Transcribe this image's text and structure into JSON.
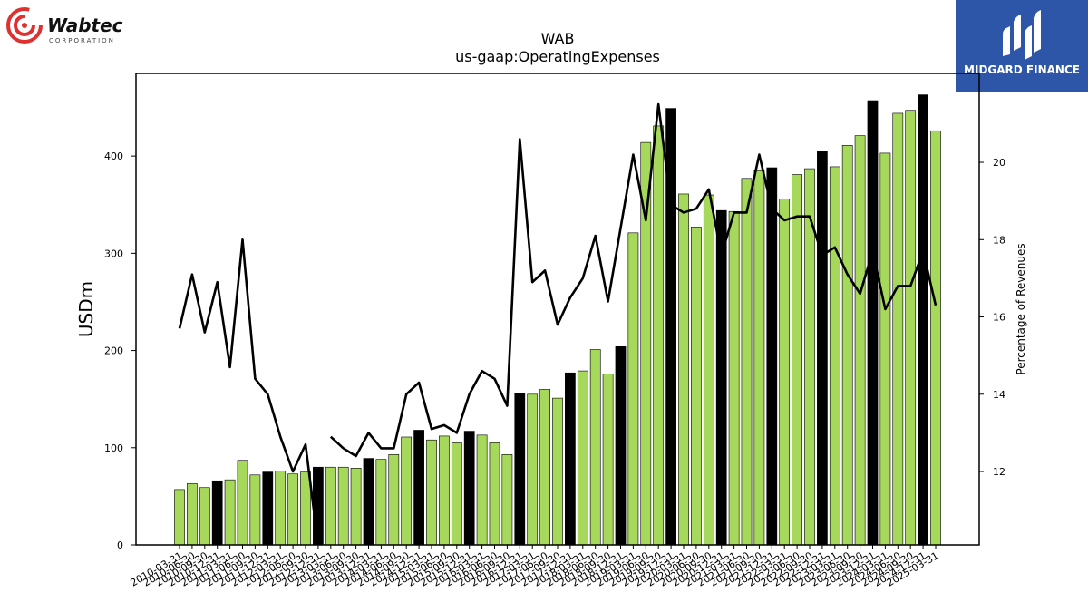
{
  "header": {
    "company_logo_text": "Wabtec",
    "company_logo_subtext": "CORPORATION",
    "brand_logo_text": "MIDGARD FINANCE"
  },
  "colors": {
    "bar_regular": "#a6d85b",
    "bar_highlight": "#000000",
    "line": "#000000",
    "brand_bg": "#2d56a8",
    "wabtec_red": "#e03131"
  },
  "chart_data": {
    "type": "bar",
    "title": "WAB",
    "subtitle": "us-gaap:OperatingExpenses",
    "ylabel": "USDm",
    "y2label": "Percentage of Revenues",
    "ylim": [
      0,
      485
    ],
    "y2lim": [
      10.1,
      22.3
    ],
    "yticks": [
      0,
      100,
      200,
      300,
      400
    ],
    "y2ticks": [
      12,
      14,
      16,
      18,
      20
    ],
    "grid": false,
    "x": [
      "2010-03-31",
      "2010-06-30",
      "2010-09-30",
      "2010-12-31",
      "2011-03-31",
      "2011-06-30",
      "2011-09-30",
      "2011-12-31",
      "2012-03-31",
      "2012-06-30",
      "2012-09-30",
      "2012-12-31",
      "2013-03-31",
      "2013-06-30",
      "2013-09-30",
      "2013-12-31",
      "2014-03-31",
      "2014-06-30",
      "2014-09-30",
      "2014-12-31",
      "2015-03-31",
      "2015-06-30",
      "2015-09-30",
      "2015-12-31",
      "2016-03-31",
      "2016-06-30",
      "2016-09-30",
      "2016-12-31",
      "2017-03-31",
      "2017-06-30",
      "2017-09-30",
      "2017-12-31",
      "2018-03-31",
      "2018-06-30",
      "2018-09-30",
      "2018-12-31",
      "2019-03-31",
      "2019-06-30",
      "2019-09-30",
      "2019-12-31",
      "2020-03-31",
      "2020-06-30",
      "2020-09-30",
      "2020-12-31",
      "2021-03-31",
      "2021-06-30",
      "2021-09-30",
      "2021-12-31",
      "2022-03-31",
      "2022-06-30",
      "2022-09-30",
      "2022-12-31",
      "2023-03-31",
      "2023-06-30",
      "2023-09-30",
      "2023-12-31",
      "2024-03-31",
      "2024-06-30",
      "2024-09-30",
      "2024-12-31",
      "2025-03-31"
    ],
    "xtick_labels": [
      "2010-03-31",
      "2010-06-30",
      "2010-09-30",
      "2010-12-31",
      "2011-03-31",
      "2011-06-30",
      "2011-09-30",
      "2011-12-31",
      "2012-03-31",
      "2012-06-30",
      "2012-09-30",
      "2012-12-31",
      "2013-03-31",
      "2013-06-30",
      "2013-09-30",
      "2013-12-31",
      "2014-03-31",
      "2014-06-30",
      "2014-09-30",
      "2014-12-31",
      "2015-03-31",
      "2015-06-30",
      "2015-09-30",
      "2015-12-31",
      "2016-03-31",
      "2016-06-30",
      "2016-09-30",
      "2016-12-31",
      "2017-03-31",
      "2017-06-30",
      "2017-09-30",
      "2017-12-31",
      "2018-03-31",
      "2018-06-30",
      "2018-09-30",
      "2018-12-31",
      "2019-03-31",
      "2019-06-30",
      "2019-09-30",
      "2019-12-31",
      "2020-03-31",
      "2020-06-30",
      "2020-09-30",
      "2020-12-31",
      "2021-03-31",
      "2021-06-30",
      "2021-09-30",
      "2021-12-31",
      "2022-03-31",
      "2022-06-30",
      "2022-09-30",
      "2022-12-31",
      "2023-03-31",
      "2023-06-30",
      "2023-09-30",
      "2023-12-31",
      "2024-03-31",
      "2024-06-30",
      "2024-09-30",
      "2024-12-31",
      "2025-03-31"
    ],
    "series": [
      {
        "kind": "bar",
        "axis": "left",
        "values": [
          57,
          63,
          59,
          66,
          67,
          87,
          72,
          75,
          76,
          73,
          75,
          80,
          80,
          80,
          79,
          89,
          88,
          93,
          111,
          118,
          108,
          112,
          105,
          117,
          113,
          105,
          93,
          156,
          155,
          160,
          151,
          177,
          179,
          201,
          176,
          204,
          321,
          414,
          431,
          449,
          361,
          327,
          360,
          344,
          343,
          377,
          385,
          388,
          356,
          381,
          387,
          405,
          389,
          411,
          421,
          457,
          403,
          444,
          447,
          463,
          426
        ],
        "highlight": [
          false,
          false,
          false,
          true,
          false,
          false,
          false,
          true,
          false,
          false,
          false,
          true,
          false,
          false,
          false,
          true,
          false,
          false,
          false,
          true,
          false,
          false,
          false,
          true,
          false,
          false,
          false,
          true,
          false,
          false,
          false,
          true,
          false,
          false,
          false,
          true,
          false,
          false,
          false,
          true,
          false,
          false,
          false,
          true,
          false,
          false,
          false,
          true,
          false,
          false,
          false,
          true,
          false,
          false,
          false,
          true,
          false,
          false,
          false,
          true,
          false
        ]
      },
      {
        "kind": "line",
        "axis": "right",
        "values": [
          15.7,
          17.1,
          15.6,
          16.9,
          14.7,
          18.0,
          14.4,
          14.0,
          12.9,
          12.0,
          12.7,
          null,
          12.9,
          12.6,
          12.4,
          13.0,
          12.6,
          12.6,
          14.0,
          14.3,
          13.1,
          13.2,
          13.0,
          14.0,
          14.6,
          14.4,
          13.7,
          20.6,
          16.9,
          17.2,
          15.8,
          16.5,
          17.0,
          18.1,
          16.4,
          18.3,
          20.2,
          18.5,
          21.5,
          18.9,
          18.7,
          18.8,
          19.3,
          17.6,
          18.7,
          18.7,
          20.2,
          18.8,
          18.5,
          18.6,
          18.6,
          17.6,
          17.8,
          17.1,
          16.6,
          17.7,
          16.2,
          16.8,
          16.8,
          17.7,
          16.3
        ]
      }
    ]
  }
}
